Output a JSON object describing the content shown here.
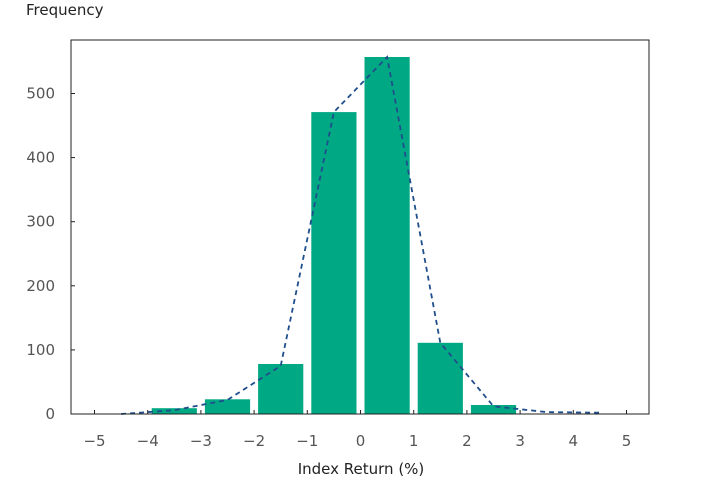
{
  "chart_data": {
    "type": "bar",
    "title": "",
    "ylabel": "Frequency",
    "xlabel": "Index Return (%)",
    "xlim": [
      -5,
      5
    ],
    "ylim": [
      0,
      580
    ],
    "x_ticks": [
      -5,
      -4,
      -3,
      -2,
      -1,
      0,
      1,
      2,
      3,
      4,
      5
    ],
    "x_tick_labels": [
      "−5",
      "−4",
      "−3",
      "−2",
      "−1",
      "0",
      "1",
      "2",
      "3",
      "4",
      "5"
    ],
    "y_ticks": [
      0,
      100,
      200,
      300,
      400,
      500
    ],
    "y_tick_labels": [
      "0",
      "100",
      "200",
      "300",
      "400",
      "500"
    ],
    "grid": false,
    "legend": "none",
    "bar_color": "#00A884",
    "line_color": "#1F4E8C",
    "bars": [
      {
        "from": -4.0,
        "to": -3.0,
        "value": 9
      },
      {
        "from": -3.0,
        "to": -2.0,
        "value": 23
      },
      {
        "from": -2.0,
        "to": -1.0,
        "value": 78
      },
      {
        "from": -1.0,
        "to": 0.0,
        "value": 471
      },
      {
        "from": 0.0,
        "to": 1.0,
        "value": 557
      },
      {
        "from": 1.0,
        "to": 2.0,
        "value": 111
      },
      {
        "from": 2.0,
        "to": 3.0,
        "value": 14
      }
    ],
    "curve": {
      "style": "dashed",
      "x": [
        -4.5,
        -3.5,
        -2.5,
        -1.5,
        -0.5,
        0.5,
        1.5,
        2.5,
        3.5,
        4.5
      ],
      "y": [
        0,
        6,
        22,
        75,
        471,
        557,
        111,
        12,
        3,
        2
      ]
    }
  }
}
